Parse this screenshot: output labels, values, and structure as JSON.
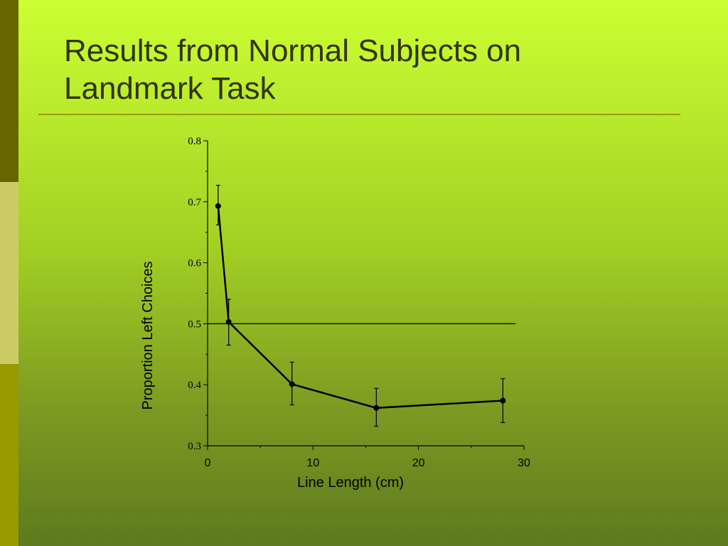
{
  "slide": {
    "title_line1": "Results from Normal Subjects on",
    "title_line2": "Landmark Task"
  },
  "chart_data": {
    "type": "line",
    "title": "",
    "xlabel": "Line Length (cm)",
    "ylabel": "Proportion Left Choices",
    "xlim": [
      0,
      30
    ],
    "ylim": [
      0.3,
      0.8
    ],
    "x_ticks": [
      0,
      10,
      20,
      30
    ],
    "x_tick_labels": [
      "0",
      "10",
      "20",
      "30"
    ],
    "y_ticks": [
      0.3,
      0.4,
      0.5,
      0.6,
      0.7,
      0.8
    ],
    "y_tick_labels": [
      "0.3",
      "0.4",
      "0.5",
      "0.6",
      "0.7",
      "0.8"
    ],
    "grid": false,
    "reference_line": {
      "y": 0.5,
      "x_range": [
        0,
        29.2
      ]
    },
    "series": [
      {
        "x": [
          1,
          2,
          8,
          16,
          28
        ],
        "y": [
          0.693,
          0.503,
          0.401,
          0.362,
          0.374
        ],
        "error_low": [
          0.662,
          0.465,
          0.367,
          0.332,
          0.338
        ],
        "error_high": [
          0.727,
          0.54,
          0.437,
          0.394,
          0.41
        ],
        "color": "#000000"
      }
    ]
  }
}
